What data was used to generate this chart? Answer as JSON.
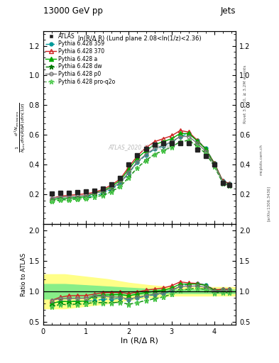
{
  "title_top": "13000 GeV pp",
  "title_right": "Jets",
  "plot_label": "ln(R/Δ R) (Lund plane 2.08<ln(1/z)<2.36)",
  "watermark": "ATLAS_2020_I1790256",
  "rivet_label": "Rivet 3.1.10, ≥ 3.2M events",
  "arxiv_label": "[arXiv:1306.3436]",
  "mcplots_label": "mcplots.cern.ch",
  "ylabel_main": "$\\frac{1}{N_{\\rm jets}}\\frac{d^2 N_{\\rm emissions}}{d\\ln(R/\\Delta R)\\,d\\ln(1/z)}$",
  "ylabel_ratio": "Ratio to ATLAS",
  "xlabel": "ln (R/Δ R)",
  "x_atlas": [
    0.2,
    0.4,
    0.6,
    0.8,
    1.0,
    1.2,
    1.4,
    1.6,
    1.8,
    2.0,
    2.2,
    2.4,
    2.6,
    2.8,
    3.0,
    3.2,
    3.4,
    3.6,
    3.8,
    4.0,
    4.2,
    4.35
  ],
  "y_atlas": [
    0.205,
    0.21,
    0.21,
    0.215,
    0.22,
    0.225,
    0.24,
    0.27,
    0.31,
    0.4,
    0.465,
    0.505,
    0.535,
    0.545,
    0.545,
    0.545,
    0.545,
    0.5,
    0.46,
    0.4,
    0.28,
    0.265
  ],
  "x_py359": [
    0.2,
    0.4,
    0.6,
    0.8,
    1.0,
    1.2,
    1.4,
    1.6,
    1.8,
    2.0,
    2.2,
    2.4,
    2.6,
    2.8,
    3.0,
    3.2,
    3.4,
    3.6,
    3.8,
    4.0,
    4.2,
    4.35
  ],
  "y_py359": [
    0.165,
    0.175,
    0.175,
    0.18,
    0.185,
    0.19,
    0.21,
    0.235,
    0.275,
    0.345,
    0.415,
    0.465,
    0.505,
    0.525,
    0.55,
    0.59,
    0.61,
    0.565,
    0.51,
    0.41,
    0.29,
    0.275
  ],
  "x_py370": [
    0.2,
    0.4,
    0.6,
    0.8,
    1.0,
    1.2,
    1.4,
    1.6,
    1.8,
    2.0,
    2.2,
    2.4,
    2.6,
    2.8,
    3.0,
    3.2,
    3.4,
    3.6,
    3.8,
    4.0,
    4.2,
    4.35
  ],
  "y_py370": [
    0.175,
    0.19,
    0.195,
    0.2,
    0.205,
    0.215,
    0.235,
    0.265,
    0.305,
    0.385,
    0.46,
    0.515,
    0.555,
    0.575,
    0.595,
    0.63,
    0.62,
    0.565,
    0.505,
    0.41,
    0.29,
    0.275
  ],
  "x_pya": [
    0.2,
    0.4,
    0.6,
    0.8,
    1.0,
    1.2,
    1.4,
    1.6,
    1.8,
    2.0,
    2.2,
    2.4,
    2.6,
    2.8,
    3.0,
    3.2,
    3.4,
    3.6,
    3.8,
    4.0,
    4.2,
    4.35
  ],
  "y_pya": [
    0.165,
    0.175,
    0.175,
    0.18,
    0.185,
    0.21,
    0.225,
    0.255,
    0.295,
    0.37,
    0.445,
    0.495,
    0.535,
    0.555,
    0.575,
    0.61,
    0.61,
    0.56,
    0.505,
    0.405,
    0.285,
    0.27
  ],
  "x_pydw": [
    0.2,
    0.4,
    0.6,
    0.8,
    1.0,
    1.2,
    1.4,
    1.6,
    1.8,
    2.0,
    2.2,
    2.4,
    2.6,
    2.8,
    3.0,
    3.2,
    3.4,
    3.6,
    3.8,
    4.0,
    4.2,
    4.35
  ],
  "y_pydw": [
    0.155,
    0.165,
    0.165,
    0.17,
    0.175,
    0.185,
    0.195,
    0.22,
    0.255,
    0.315,
    0.38,
    0.43,
    0.47,
    0.495,
    0.52,
    0.555,
    0.565,
    0.525,
    0.475,
    0.39,
    0.275,
    0.26
  ],
  "x_pyp0": [
    0.2,
    0.4,
    0.6,
    0.8,
    1.0,
    1.2,
    1.4,
    1.6,
    1.8,
    2.0,
    2.2,
    2.4,
    2.6,
    2.8,
    3.0,
    3.2,
    3.4,
    3.6,
    3.8,
    4.0,
    4.2,
    4.35
  ],
  "y_pyp0": [
    0.175,
    0.185,
    0.185,
    0.19,
    0.195,
    0.21,
    0.22,
    0.245,
    0.28,
    0.35,
    0.42,
    0.47,
    0.51,
    0.53,
    0.555,
    0.59,
    0.59,
    0.545,
    0.49,
    0.4,
    0.285,
    0.27
  ],
  "x_pyq2o": [
    0.2,
    0.4,
    0.6,
    0.8,
    1.0,
    1.2,
    1.4,
    1.6,
    1.8,
    2.0,
    2.2,
    2.4,
    2.6,
    2.8,
    3.0,
    3.2,
    3.4,
    3.6,
    3.8,
    4.0,
    4.2,
    4.35
  ],
  "y_pyq2o": [
    0.153,
    0.163,
    0.163,
    0.168,
    0.173,
    0.183,
    0.193,
    0.218,
    0.253,
    0.313,
    0.378,
    0.428,
    0.468,
    0.493,
    0.518,
    0.553,
    0.563,
    0.523,
    0.473,
    0.388,
    0.273,
    0.258
  ],
  "band_x": [
    0.0,
    0.2,
    0.5,
    1.0,
    1.5,
    2.0,
    2.5,
    3.0,
    3.5,
    4.0,
    4.5
  ],
  "band_green_lo": [
    0.88,
    0.88,
    0.88,
    0.9,
    0.92,
    0.94,
    0.96,
    0.97,
    0.97,
    0.97,
    0.97
  ],
  "band_green_hi": [
    1.12,
    1.12,
    1.12,
    1.1,
    1.08,
    1.06,
    1.04,
    1.03,
    1.03,
    1.03,
    1.03
  ],
  "band_yellow_lo": [
    0.72,
    0.72,
    0.72,
    0.76,
    0.8,
    0.86,
    0.9,
    0.93,
    0.93,
    0.93,
    0.93
  ],
  "band_yellow_hi": [
    1.28,
    1.28,
    1.28,
    1.24,
    1.2,
    1.14,
    1.1,
    1.07,
    1.07,
    1.07,
    1.07
  ],
  "color_atlas": "#222222",
  "color_py359": "#009999",
  "color_py370": "#cc2222",
  "color_pya": "#00aa00",
  "color_pydw": "#007700",
  "color_pyp0": "#777777",
  "color_pyq2o": "#55cc55",
  "xlim": [
    0.0,
    4.5
  ],
  "ylim_main": [
    0.0,
    1.3
  ],
  "ylim_ratio": [
    0.45,
    2.1
  ],
  "yticks_main": [
    0.2,
    0.4,
    0.6,
    0.8,
    1.0,
    1.2
  ],
  "yticks_ratio": [
    0.5,
    1.0,
    1.5,
    2.0
  ],
  "xticks": [
    0,
    1,
    2,
    3,
    4
  ]
}
